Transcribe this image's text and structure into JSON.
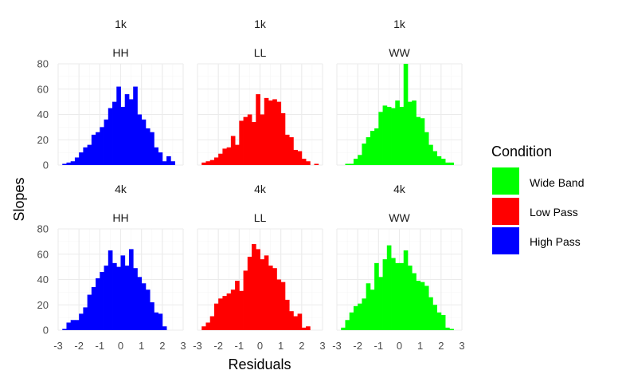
{
  "chart_data": {
    "type": "bar",
    "subtype": "faceted histogram",
    "xlabel": "Residuals",
    "ylabel": "Slopes",
    "xlim": [
      -3,
      3
    ],
    "ylim": [
      0,
      80
    ],
    "x_ticks": [
      "-3",
      "-2",
      "-1",
      "0",
      "1",
      "2",
      "3"
    ],
    "y_ticks": [
      "0",
      "20",
      "40",
      "60",
      "80"
    ],
    "bin_start": -2.8,
    "bin_width": 0.2,
    "grid": true,
    "legend": {
      "title": "Condition",
      "position": "right",
      "entries": [
        {
          "label": "Wide Band",
          "color": "#00ff00"
        },
        {
          "label": "Low Pass",
          "color": "#ff0000"
        },
        {
          "label": "High Pass",
          "color": "#0000ff"
        }
      ]
    },
    "panels": [
      {
        "row_label": "1k",
        "col_label": "HH",
        "color": "#0000ff",
        "counts": [
          1,
          2,
          3,
          6,
          10,
          14,
          16,
          24,
          26,
          30,
          36,
          45,
          50,
          62,
          46,
          56,
          52,
          62,
          40,
          36,
          29,
          26,
          14,
          10,
          3,
          7,
          3,
          0
        ]
      },
      {
        "row_label": "1k",
        "col_label": "LL",
        "color": "#ff0000",
        "counts": [
          2,
          3,
          4,
          6,
          9,
          13,
          14,
          23,
          16,
          35,
          38,
          40,
          34,
          56,
          40,
          53,
          51,
          52,
          50,
          41,
          24,
          22,
          12,
          11,
          5,
          3,
          0,
          1
        ]
      },
      {
        "row_label": "1k",
        "col_label": "WW",
        "color": "#00ff00",
        "counts": [
          0,
          1,
          1,
          5,
          8,
          17,
          22,
          27,
          29,
          42,
          47,
          46,
          45,
          51,
          46,
          80,
          50,
          51,
          38,
          37,
          26,
          16,
          11,
          7,
          5,
          2,
          2,
          0
        ]
      },
      {
        "row_label": "4k",
        "col_label": "HH",
        "color": "#0000ff",
        "counts": [
          1,
          6,
          8,
          8,
          13,
          18,
          28,
          34,
          41,
          46,
          51,
          63,
          53,
          50,
          59,
          51,
          64,
          49,
          42,
          37,
          32,
          22,
          14,
          13,
          3,
          0,
          0,
          0
        ]
      },
      {
        "row_label": "4k",
        "col_label": "LL",
        "color": "#ff0000",
        "counts": [
          3,
          6,
          11,
          21,
          25,
          27,
          29,
          32,
          39,
          31,
          47,
          58,
          68,
          64,
          56,
          59,
          51,
          49,
          40,
          38,
          24,
          15,
          11,
          13,
          2,
          3,
          0,
          0
        ]
      },
      {
        "row_label": "4k",
        "col_label": "WW",
        "color": "#00ff00",
        "counts": [
          2,
          8,
          14,
          19,
          21,
          25,
          37,
          32,
          53,
          42,
          56,
          67,
          57,
          53,
          53,
          63,
          51,
          45,
          39,
          38,
          35,
          26,
          20,
          14,
          12,
          2,
          1,
          0
        ]
      }
    ]
  }
}
